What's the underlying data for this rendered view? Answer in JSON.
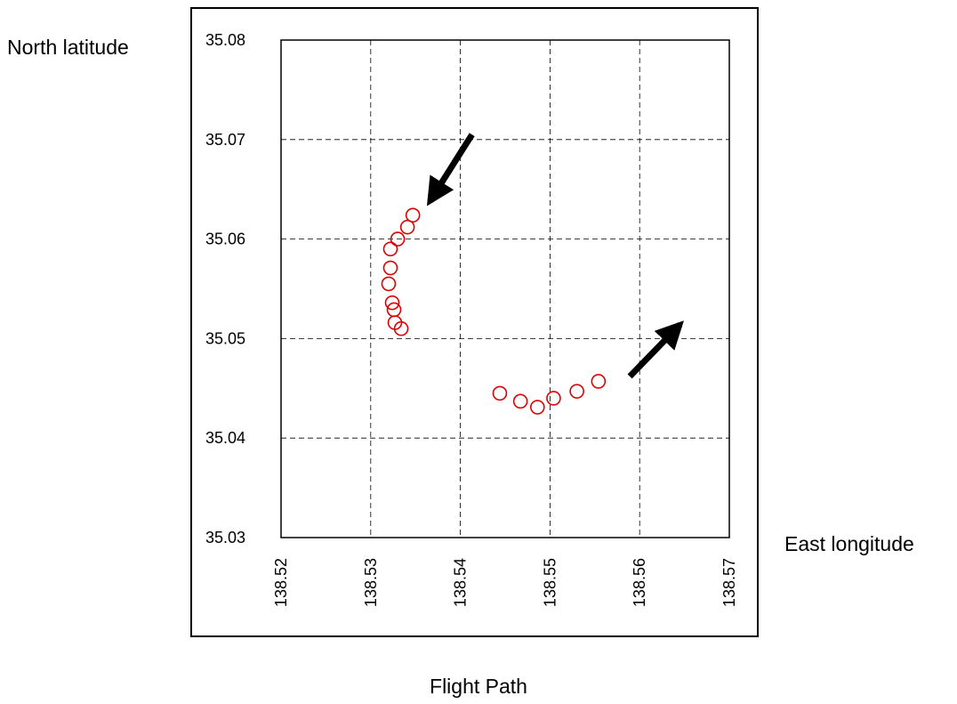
{
  "figure": {
    "caption": "Flight Path"
  },
  "chart_data": {
    "type": "scatter",
    "title": "",
    "xlabel": "East longitude",
    "ylabel": "North latitude",
    "xlim": [
      138.52,
      138.57
    ],
    "ylim": [
      35.03,
      35.08
    ],
    "xticks": [
      "138.52",
      "138.53",
      "138.54",
      "138.55",
      "138.56",
      "138.57"
    ],
    "yticks": [
      "35.03",
      "35.04",
      "35.05",
      "35.06",
      "35.07",
      "35.08"
    ],
    "grid": true,
    "marker_color": "#e00000",
    "series": [
      {
        "points": [
          {
            "x": 138.5347,
            "y": 35.0624
          },
          {
            "x": 138.5341,
            "y": 35.0612
          },
          {
            "x": 138.533,
            "y": 35.06
          },
          {
            "x": 138.5322,
            "y": 35.059
          },
          {
            "x": 138.5322,
            "y": 35.0571
          },
          {
            "x": 138.532,
            "y": 35.0555
          },
          {
            "x": 138.5324,
            "y": 35.0536
          },
          {
            "x": 138.5326,
            "y": 35.0529
          },
          {
            "x": 138.5327,
            "y": 35.0516
          },
          {
            "x": 138.5334,
            "y": 35.051
          },
          {
            "x": 138.5444,
            "y": 35.0445
          },
          {
            "x": 138.5467,
            "y": 35.0437
          },
          {
            "x": 138.5486,
            "y": 35.0431
          },
          {
            "x": 138.5504,
            "y": 35.044
          },
          {
            "x": 138.553,
            "y": 35.0447
          },
          {
            "x": 138.5554,
            "y": 35.0457
          }
        ]
      }
    ],
    "annotations": [
      {
        "type": "arrow",
        "direction": "down-left",
        "from": {
          "x": 138.5413,
          "y": 35.0705
        },
        "to": {
          "x": 138.5366,
          "y": 35.0638
        }
      },
      {
        "type": "arrow",
        "direction": "up-right",
        "from": {
          "x": 138.5589,
          "y": 35.0462
        },
        "to": {
          "x": 138.5645,
          "y": 35.0514
        }
      }
    ]
  }
}
